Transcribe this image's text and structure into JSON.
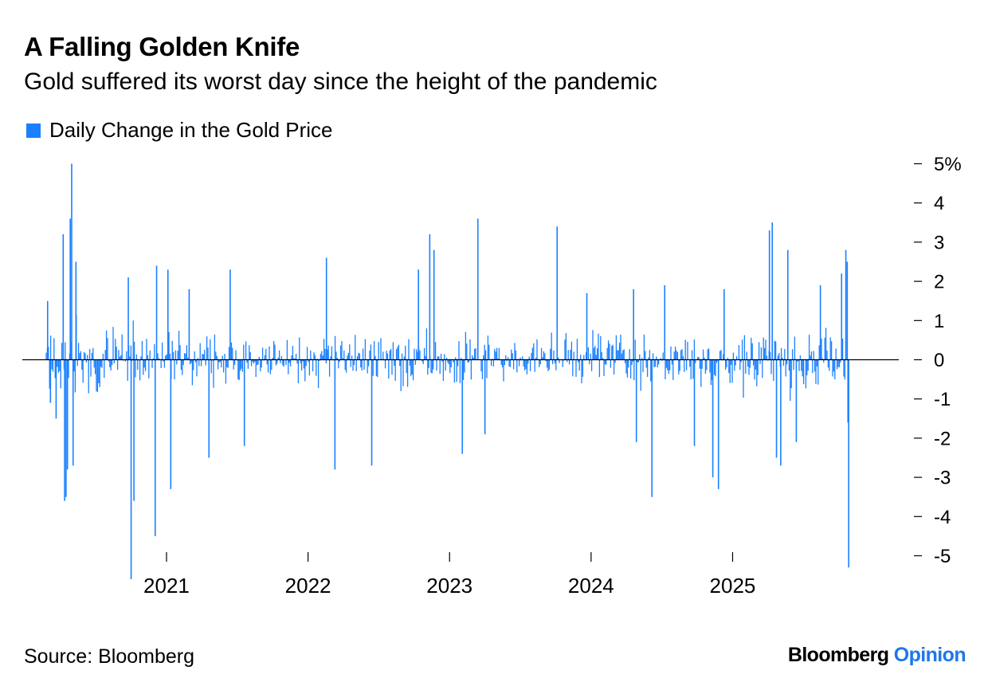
{
  "title": "A Falling Golden Knife",
  "subtitle": "Gold suffered its worst day since the height of the pandemic",
  "legend": [
    {
      "label": "Daily Change in the Gold Price",
      "color": "#1a80ff"
    }
  ],
  "footer": {
    "source": "Source: Bloomberg",
    "brand_primary": "Bloomberg",
    "brand_secondary": "Opinion"
  },
  "colors": {
    "bar": "#1a80ff",
    "brand_accent": "#1f77e8",
    "zero_line": "#000000"
  },
  "chart_data": {
    "type": "bar",
    "title": "A Falling Golden Knife",
    "subtitle": "Gold suffered its worst day since the height of the pandemic",
    "series_name": "Daily Change in the Gold Price",
    "unit": "%",
    "x_range": [
      2020.15,
      2025.96
    ],
    "ylim": [
      -5.4,
      5.2
    ],
    "y_ticks": [
      {
        "value": 5,
        "label": "5%"
      },
      {
        "value": 4,
        "label": "4"
      },
      {
        "value": 3,
        "label": "3"
      },
      {
        "value": 2,
        "label": "2"
      },
      {
        "value": 1,
        "label": "1"
      },
      {
        "value": 0,
        "label": "0"
      },
      {
        "value": -1,
        "label": "-1"
      },
      {
        "value": -2,
        "label": "-2"
      },
      {
        "value": -3,
        "label": "-3"
      },
      {
        "value": -4,
        "label": "-4"
      },
      {
        "value": -5,
        "label": "-5"
      }
    ],
    "x_ticks": [
      {
        "value": 2021,
        "label": "2021"
      },
      {
        "value": 2022,
        "label": "2022"
      },
      {
        "value": 2023,
        "label": "2023"
      },
      {
        "value": 2024,
        "label": "2024"
      },
      {
        "value": 2025,
        "label": "2025"
      }
    ],
    "highlighted_points": [
      {
        "x": 2020.33,
        "y": 5.0
      },
      {
        "x": 2020.32,
        "y": 3.6
      },
      {
        "x": 2020.27,
        "y": 3.2
      },
      {
        "x": 2020.28,
        "y": -3.6
      },
      {
        "x": 2020.29,
        "y": -3.5
      },
      {
        "x": 2020.36,
        "y": 2.5
      },
      {
        "x": 2020.3,
        "y": -2.8
      },
      {
        "x": 2020.34,
        "y": -2.7
      },
      {
        "x": 2020.16,
        "y": 1.5
      },
      {
        "x": 2020.18,
        "y": -1.1
      },
      {
        "x": 2020.22,
        "y": -1.5
      },
      {
        "x": 2020.75,
        "y": -5.6
      },
      {
        "x": 2020.77,
        "y": -3.6
      },
      {
        "x": 2020.73,
        "y": 2.1
      },
      {
        "x": 2020.92,
        "y": -4.5
      },
      {
        "x": 2020.93,
        "y": 2.4
      },
      {
        "x": 2021.01,
        "y": 2.3
      },
      {
        "x": 2021.03,
        "y": -3.3
      },
      {
        "x": 2021.16,
        "y": 1.8
      },
      {
        "x": 2021.3,
        "y": -2.5
      },
      {
        "x": 2021.45,
        "y": 2.3
      },
      {
        "x": 2021.55,
        "y": -2.2
      },
      {
        "x": 2022.13,
        "y": 2.6
      },
      {
        "x": 2022.19,
        "y": -2.8
      },
      {
        "x": 2022.45,
        "y": -2.7
      },
      {
        "x": 2022.78,
        "y": 2.3
      },
      {
        "x": 2022.86,
        "y": 3.2
      },
      {
        "x": 2022.89,
        "y": 2.8
      },
      {
        "x": 2023.09,
        "y": -2.4
      },
      {
        "x": 2023.2,
        "y": 3.6
      },
      {
        "x": 2023.25,
        "y": -1.9
      },
      {
        "x": 2023.76,
        "y": 3.4
      },
      {
        "x": 2023.97,
        "y": 1.7
      },
      {
        "x": 2024.3,
        "y": 1.8
      },
      {
        "x": 2024.32,
        "y": -2.1
      },
      {
        "x": 2024.43,
        "y": -3.5
      },
      {
        "x": 2024.52,
        "y": 1.9
      },
      {
        "x": 2024.73,
        "y": -2.2
      },
      {
        "x": 2024.86,
        "y": -3.0
      },
      {
        "x": 2024.9,
        "y": -3.3
      },
      {
        "x": 2024.94,
        "y": 1.8
      },
      {
        "x": 2025.26,
        "y": 3.3
      },
      {
        "x": 2025.28,
        "y": 3.5
      },
      {
        "x": 2025.31,
        "y": -2.5
      },
      {
        "x": 2025.34,
        "y": -2.7
      },
      {
        "x": 2025.39,
        "y": 2.8
      },
      {
        "x": 2025.45,
        "y": -2.1
      },
      {
        "x": 2025.62,
        "y": 1.9
      },
      {
        "x": 2025.77,
        "y": 2.2
      },
      {
        "x": 2025.8,
        "y": 2.8
      },
      {
        "x": 2025.81,
        "y": 2.5
      },
      {
        "x": 2025.815,
        "y": -1.6
      },
      {
        "x": 2025.82,
        "y": -5.3
      }
    ],
    "period_volatility": [
      {
        "period": [
          2020.15,
          2020.5
        ],
        "amplitude": 1.9
      },
      {
        "period": [
          2020.5,
          2021.0
        ],
        "amplitude": 1.3
      },
      {
        "period": [
          2021.0,
          2022.0
        ],
        "amplitude": 1.0
      },
      {
        "period": [
          2022.0,
          2023.0
        ],
        "amplitude": 1.1
      },
      {
        "period": [
          2023.0,
          2024.0
        ],
        "amplitude": 1.0
      },
      {
        "period": [
          2024.0,
          2025.0
        ],
        "amplitude": 1.1
      },
      {
        "period": [
          2025.0,
          2025.82
        ],
        "amplitude": 1.4
      }
    ]
  }
}
